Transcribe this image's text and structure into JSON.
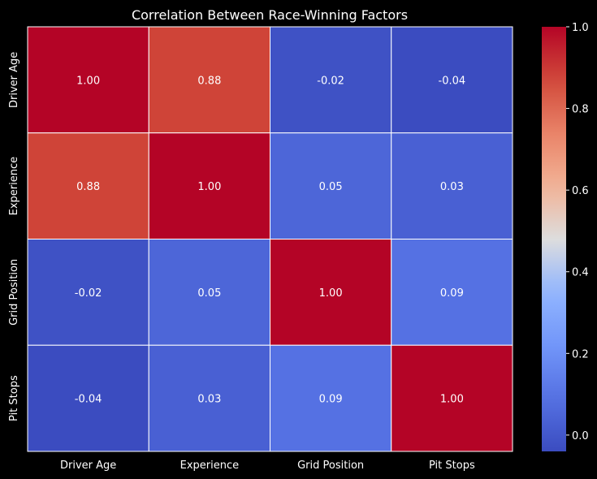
{
  "chart_data": {
    "type": "heatmap",
    "title": "Correlation Between Race-Winning Factors",
    "x_labels": [
      "Driver Age",
      "Experience",
      "Grid Position",
      "Pit Stops"
    ],
    "y_labels": [
      "Driver Age",
      "Experience",
      "Grid Position",
      "Pit Stops"
    ],
    "values": [
      [
        1.0,
        0.88,
        -0.02,
        -0.04
      ],
      [
        0.88,
        1.0,
        0.05,
        0.03
      ],
      [
        -0.02,
        0.05,
        1.0,
        0.09
      ],
      [
        -0.04,
        0.03,
        0.09,
        1.0
      ]
    ],
    "value_format": "0.00",
    "colormap": "coolwarm",
    "color_range": [
      -0.04,
      1.0
    ],
    "colorbar_ticks": [
      "0.0",
      "0.2",
      "0.4",
      "0.6",
      "0.8",
      "1.0"
    ],
    "colorbar_tick_values": [
      0.0,
      0.2,
      0.4,
      0.6,
      0.8,
      1.0
    ],
    "cell_border_color": "#ffffff",
    "background_color": "#000000",
    "text_color": "#ffffff"
  }
}
